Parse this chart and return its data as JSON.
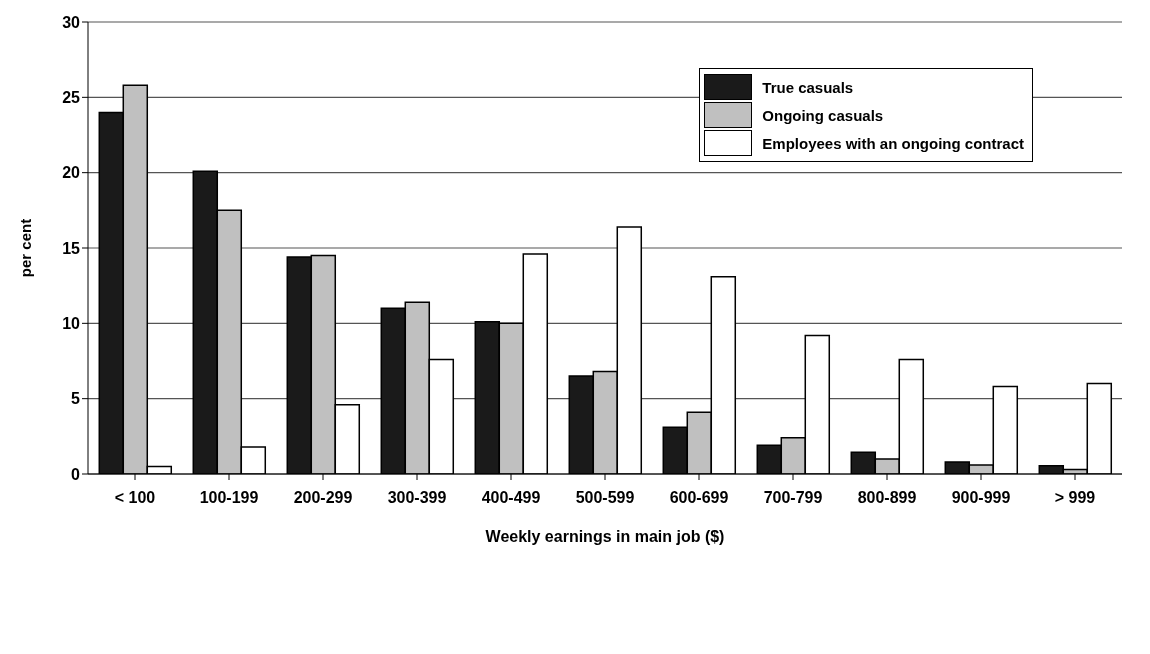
{
  "chart_data": {
    "type": "bar",
    "xlabel": "Weekly earnings in main job ($)",
    "ylabel": "per cent",
    "categories": [
      "< 100",
      "100-199",
      "200-299",
      "300-399",
      "400-499",
      "500-599",
      "600-699",
      "700-799",
      "800-899",
      "900-999",
      "> 999"
    ],
    "series": [
      {
        "name": "True casuals",
        "color": "#1a1a1a",
        "values": [
          24.0,
          20.1,
          14.4,
          11.0,
          10.1,
          6.5,
          3.1,
          1.9,
          1.45,
          0.8,
          0.55
        ]
      },
      {
        "name": "Ongoing casuals",
        "color": "#c0c0c0",
        "values": [
          25.8,
          17.5,
          14.5,
          11.4,
          10.0,
          6.8,
          4.1,
          2.4,
          1.0,
          0.6,
          0.3
        ]
      },
      {
        "name": "Employees with an ongoing contract",
        "color": "#ffffff",
        "values": [
          0.5,
          1.8,
          4.6,
          7.6,
          14.6,
          16.4,
          13.1,
          9.2,
          7.6,
          5.8,
          6.0
        ]
      }
    ],
    "ylim": [
      0,
      30
    ],
    "yticks": [
      0,
      5,
      10,
      15,
      20,
      25,
      30
    ],
    "grid": "y",
    "legend": "top right"
  }
}
